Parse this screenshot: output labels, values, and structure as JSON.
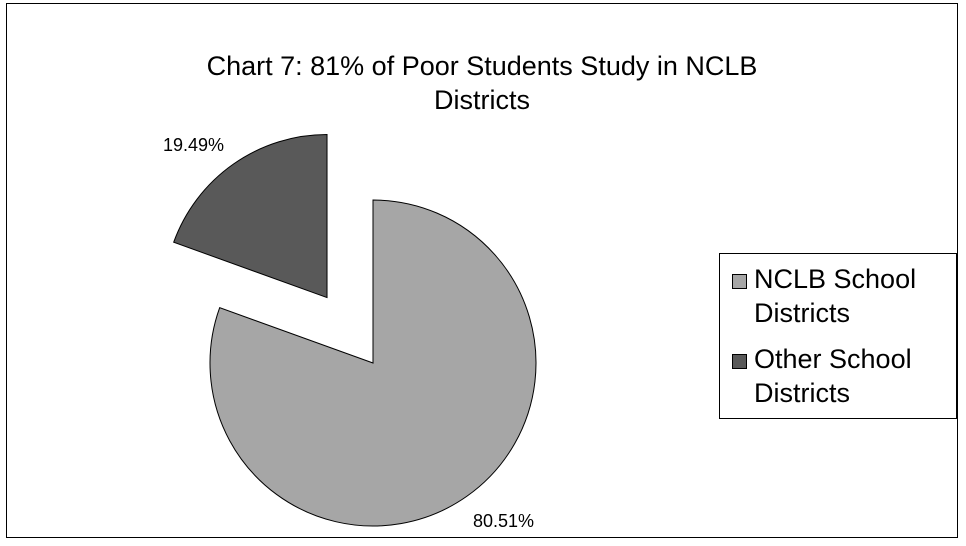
{
  "chart_data": {
    "type": "pie",
    "title": "Chart 7: 81% of Poor Students Study in NCLB Districts",
    "title_lines": [
      "Chart 7:  81% of Poor Students Study in NCLB",
      "Districts"
    ],
    "categories": [
      "NCLB School Districts",
      "Other School Districts"
    ],
    "values": [
      80.51,
      19.49
    ],
    "value_labels": [
      "80.51%",
      "19.49%"
    ],
    "colors": [
      "#a6a6a6",
      "#595959"
    ],
    "exploded": [
      "",
      "Other School Districts"
    ],
    "legend_position": "right",
    "legend": [
      {
        "lines": [
          "NCLB School",
          "Districts"
        ],
        "color": "#a6a6a6"
      },
      {
        "lines": [
          "Other School",
          "Districts"
        ],
        "color": "#595959"
      }
    ]
  }
}
